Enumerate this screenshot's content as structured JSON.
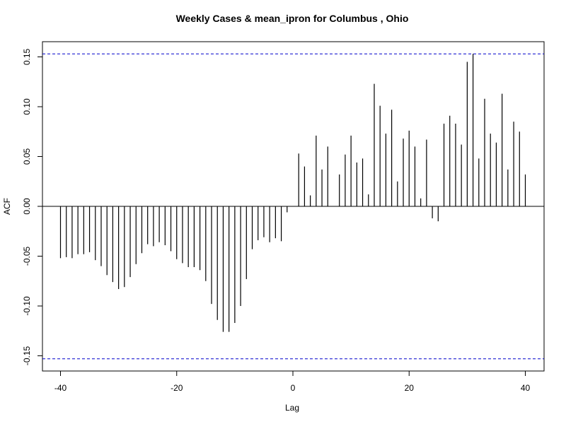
{
  "chart_data": {
    "type": "bar",
    "title": "Weekly Cases & mean_ipron for Columbus , Ohio",
    "xlabel": "Lag",
    "ylabel": "ACF",
    "xlim": [
      -40,
      40
    ],
    "ylim": [
      -0.15,
      0.15
    ],
    "x_ticks": [
      -40,
      -20,
      0,
      20,
      40
    ],
    "x_tick_labels": [
      "-40",
      "-20",
      "0",
      "20",
      "40"
    ],
    "y_ticks": [
      -0.15,
      -0.1,
      -0.05,
      0.0,
      0.05,
      0.1,
      0.15
    ],
    "y_tick_labels": [
      "-0.15",
      "-0.10",
      "-0.05",
      "0.00",
      "0.05",
      "0.10",
      "0.15"
    ],
    "confidence_band": 0.153,
    "zero_line": true,
    "grid": false,
    "x": [
      -40,
      -39,
      -38,
      -37,
      -36,
      -35,
      -34,
      -33,
      -32,
      -31,
      -30,
      -29,
      -28,
      -27,
      -26,
      -25,
      -24,
      -23,
      -22,
      -21,
      -20,
      -19,
      -18,
      -17,
      -16,
      -15,
      -14,
      -13,
      -12,
      -11,
      -10,
      -9,
      -8,
      -7,
      -6,
      -5,
      -4,
      -3,
      -2,
      -1,
      0,
      1,
      2,
      3,
      4,
      5,
      6,
      7,
      8,
      9,
      10,
      11,
      12,
      13,
      14,
      15,
      16,
      17,
      18,
      19,
      20,
      21,
      22,
      23,
      24,
      25,
      26,
      27,
      28,
      29,
      30,
      31,
      32,
      33,
      34,
      35,
      36,
      37,
      38,
      39,
      40
    ],
    "values": [
      -0.052,
      -0.051,
      -0.052,
      -0.048,
      -0.048,
      -0.046,
      -0.054,
      -0.06,
      -0.069,
      -0.076,
      -0.083,
      -0.081,
      -0.071,
      -0.058,
      -0.047,
      -0.038,
      -0.04,
      -0.036,
      -0.039,
      -0.045,
      -0.053,
      -0.057,
      -0.061,
      -0.061,
      -0.064,
      -0.075,
      -0.098,
      -0.114,
      -0.126,
      -0.126,
      -0.117,
      -0.1,
      -0.073,
      -0.043,
      -0.034,
      -0.031,
      -0.036,
      -0.032,
      -0.035,
      -0.006,
      0.0,
      0.053,
      0.04,
      0.011,
      0.071,
      0.037,
      0.06,
      0.0,
      0.032,
      0.052,
      0.071,
      0.044,
      0.048,
      0.012,
      0.123,
      0.101,
      0.073,
      0.097,
      0.025,
      0.068,
      0.076,
      0.06,
      0.008,
      0.067,
      -0.012,
      -0.015,
      0.083,
      0.091,
      0.083,
      0.062,
      0.145,
      0.153,
      0.048,
      0.108,
      0.073,
      0.064,
      0.113,
      0.037,
      0.085,
      0.075,
      0.032
    ],
    "colors": {
      "bars": "#000000",
      "confidence": "#0000cc",
      "frame": "#000000"
    }
  }
}
